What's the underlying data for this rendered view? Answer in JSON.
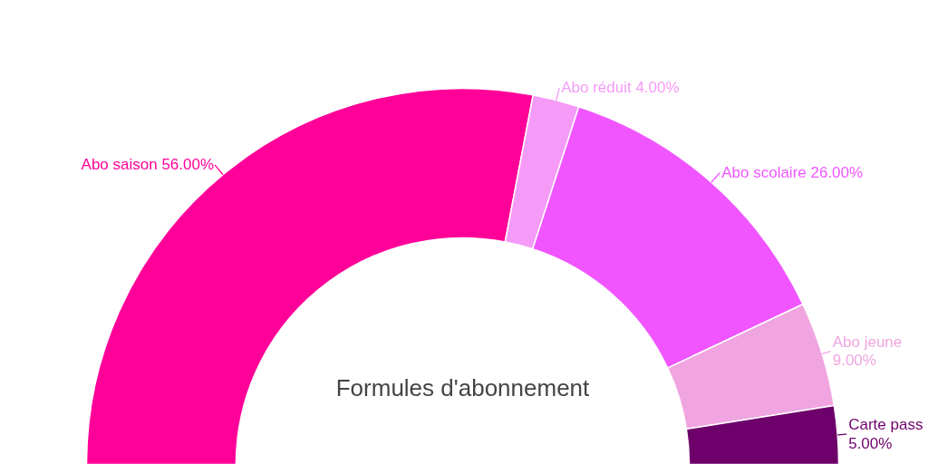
{
  "chart_data": {
    "type": "donut",
    "title": "Formules d'abonnement",
    "categories": [
      "Abo saison",
      "Abo réduit",
      "Abo scolaire",
      "Abo jeune",
      "Carte pass"
    ],
    "values": [
      56,
      4,
      26,
      9,
      5
    ],
    "value_labels": [
      "56.00%",
      "4.00%",
      "26.00%",
      "9.00%",
      "5.00%"
    ],
    "colors": [
      "#ff0099",
      "#f59bf7",
      "#f055ff",
      "#f0a5e0",
      "#6e006b"
    ]
  }
}
